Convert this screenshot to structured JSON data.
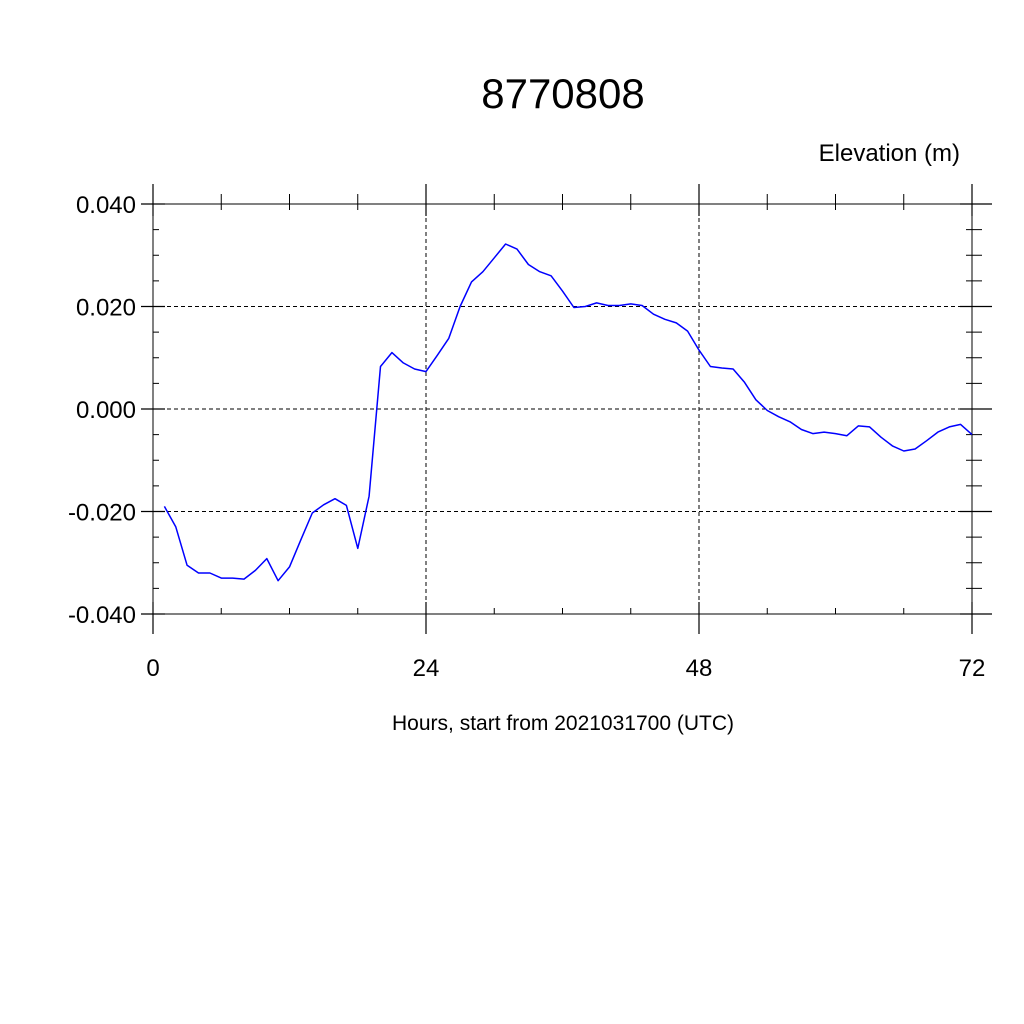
{
  "chart_data": {
    "type": "line",
    "title": "8770808",
    "ylabel": "Elevation (m)",
    "xlabel": "Hours, start from 2021031700 (UTC)",
    "xlim": [
      0,
      72
    ],
    "ylim": [
      -0.04,
      0.04
    ],
    "grid": true,
    "x_ticks": [
      0,
      24,
      48,
      72
    ],
    "x_tick_labels": [
      "0",
      "24",
      "48",
      "72"
    ],
    "y_ticks": [
      -0.04,
      -0.02,
      0,
      0.02,
      0.04
    ],
    "y_tick_labels": [
      "-0.040",
      "-0.020",
      "0.000",
      "0.020",
      "0.040"
    ],
    "series_color": "#0000ff",
    "series": [
      {
        "x": [
          1,
          2,
          3,
          4,
          5,
          6,
          7,
          8,
          9,
          10,
          11,
          12,
          13,
          14,
          15,
          16,
          17,
          18,
          19,
          20,
          21,
          22,
          23,
          24,
          25,
          26,
          27,
          28,
          29,
          30,
          31,
          32,
          33,
          34,
          35,
          36,
          37,
          38,
          39,
          40,
          41,
          42,
          43,
          44,
          45,
          46,
          47,
          48,
          49,
          50,
          51,
          52,
          53,
          54,
          55,
          56,
          57,
          58,
          59,
          60,
          61,
          62,
          63,
          64,
          65,
          66,
          67,
          68,
          69,
          70,
          71,
          72
        ],
        "values": [
          -0.019,
          -0.023,
          -0.0305,
          -0.032,
          -0.032,
          -0.033,
          -0.033,
          -0.0332,
          -0.0315,
          -0.0292,
          -0.0335,
          -0.0308,
          -0.0255,
          -0.0203,
          -0.0187,
          -0.0175,
          -0.0188,
          -0.0272,
          -0.017,
          0.0083,
          0.011,
          0.009,
          0.0078,
          0.0073,
          0.0105,
          0.0138,
          0.02,
          0.0248,
          0.0268,
          0.0295,
          0.0322,
          0.0312,
          0.0282,
          0.0268,
          0.026,
          0.023,
          0.0198,
          0.02,
          0.0207,
          0.0202,
          0.0202,
          0.0205,
          0.0202,
          0.0185,
          0.0175,
          0.0168,
          0.0152,
          0.0115,
          0.0083,
          0.008,
          0.0078,
          0.0052,
          0.0018,
          -0.0003,
          -0.0015,
          -0.0025,
          -0.004,
          -0.0048,
          -0.0045,
          -0.0048,
          -0.0052,
          -0.0033,
          -0.0035,
          -0.0055,
          -0.0072,
          -0.0082,
          -0.0078,
          -0.0062,
          -0.0045,
          -0.0035,
          -0.003,
          -0.005
        ]
      }
    ]
  }
}
